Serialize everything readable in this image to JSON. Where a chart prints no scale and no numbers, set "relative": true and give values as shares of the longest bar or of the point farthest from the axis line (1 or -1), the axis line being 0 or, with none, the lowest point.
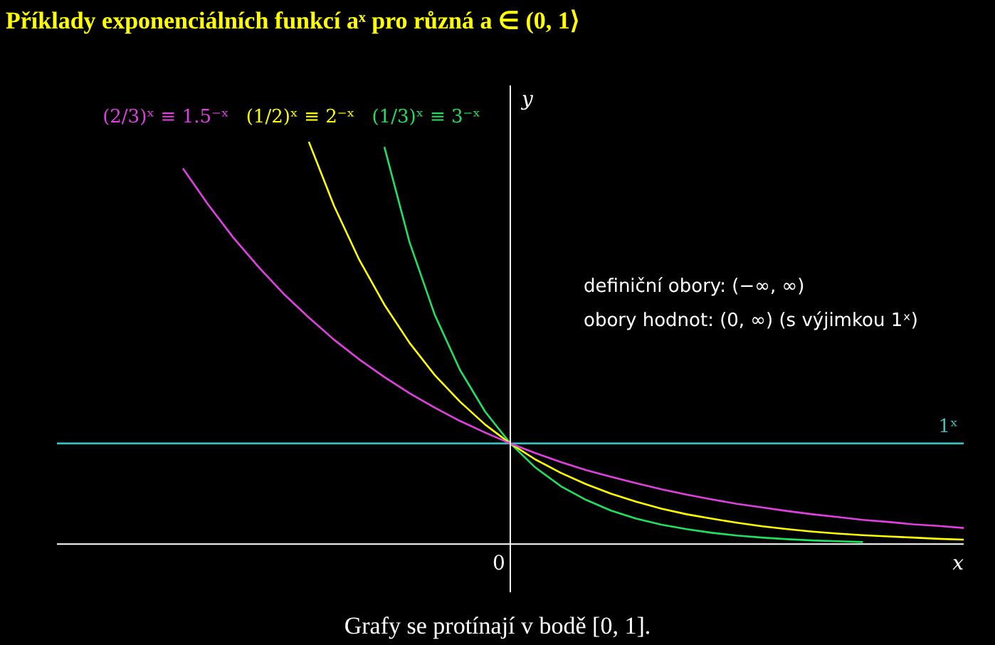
{
  "chart_data": {
    "type": "line",
    "title": "Příklady exponenciálních funkcí aˣ pro různá a ∈ (0, 1⟩",
    "xlabel": "x",
    "ylabel": "y",
    "relative": true,
    "legend": false,
    "marker": "none",
    "categories": [
      null,
      null,
      null,
      null,
      null,
      null,
      null,
      null,
      null,
      null,
      null,
      null,
      null,
      null,
      null,
      null,
      null,
      null,
      null,
      null,
      null,
      null,
      null,
      null,
      null,
      null,
      null,
      null,
      null,
      null,
      null,
      null,
      null,
      null,
      null,
      null,
      null
    ],
    "series": [
      {
        "name": "(2/3)ˣ ≡ 1.5⁻ˣ",
        "color": "#e040e0",
        "values": [
          null,
          null,
          null,
          null,
          null,
          0.934,
          0.844,
          0.762,
          0.689,
          0.622,
          0.563,
          0.508,
          0.459,
          0.415,
          0.375,
          0.339,
          0.306,
          0.277,
          0.25,
          0.226,
          0.204,
          0.184,
          0.167,
          0.151,
          0.136,
          0.123,
          0.111,
          0.1,
          0.091,
          0.082,
          0.074,
          0.067,
          0.06,
          0.055,
          0.049,
          0.045,
          0.04
        ]
      },
      {
        "name": "(1/2)ˣ ≡ 2⁻ˣ",
        "color": "#ffff00",
        "values": [
          null,
          null,
          null,
          null,
          null,
          null,
          null,
          null,
          null,
          null,
          1,
          0.841,
          0.707,
          0.595,
          0.5,
          0.42,
          0.354,
          0.297,
          0.25,
          0.21,
          0.177,
          0.149,
          0.125,
          0.105,
          0.088,
          0.074,
          0.063,
          0.053,
          0.044,
          0.037,
          0.031,
          0.026,
          0.022,
          0.019,
          0.016,
          0.013,
          0.011
        ]
      },
      {
        "name": "(1/3)ˣ ≡ 3⁻ˣ",
        "color": "#20e060",
        "values": [
          null,
          null,
          null,
          null,
          null,
          null,
          null,
          null,
          null,
          null,
          null,
          null,
          null,
          0.987,
          0.75,
          0.57,
          0.433,
          0.329,
          0.25,
          0.19,
          0.144,
          0.11,
          0.083,
          0.063,
          0.048,
          0.037,
          0.028,
          0.021,
          0.016,
          0.012,
          0.009,
          0.007,
          0.005,
          null,
          null,
          null,
          null
        ]
      },
      {
        "name": "1ˣ",
        "color": "#40c0c0",
        "values": [
          0.25,
          0.25,
          0.25,
          0.25,
          0.25,
          0.25,
          0.25,
          0.25,
          0.25,
          0.25,
          0.25,
          0.25,
          0.25,
          0.25,
          0.25,
          0.25,
          0.25,
          0.25,
          0.25,
          0.25,
          0.25,
          0.25,
          0.25,
          0.25,
          0.25,
          0.25,
          0.25,
          0.25,
          0.25,
          0.25,
          0.25,
          0.25,
          0.25,
          0.25,
          0.25,
          0.25,
          0.25
        ]
      }
    ],
    "annotations": [
      "0",
      "definiční obory: (−∞, ∞)",
      "obory hodnot: (0, ∞) (s výjimkou 1ˣ)",
      "Grafy se protínají v bodě [0, 1]."
    ]
  }
}
